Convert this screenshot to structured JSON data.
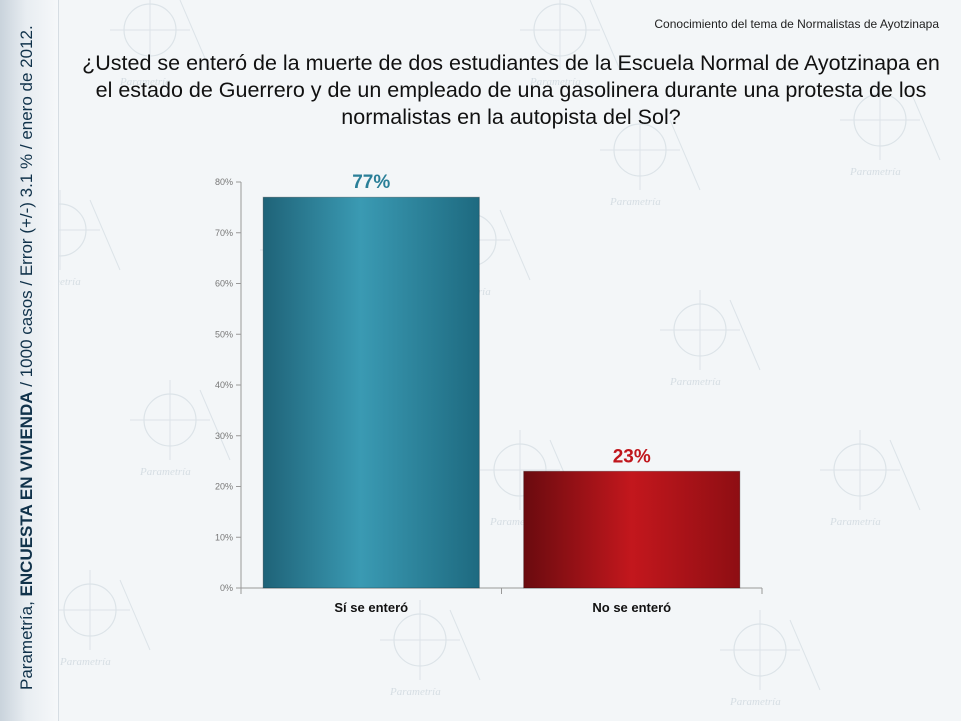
{
  "header_note": "Conocimiento del tema de Normalistas de Ayotzinapa",
  "question": "¿Usted se enteró de la muerte de dos estudiantes de la Escuela Normal de Ayotzinapa en el estado de Guerrero y de un empleado de una gasolinera durante una protesta de los normalistas en la autopista del Sol?",
  "side_note": {
    "part1": "Parametría, ",
    "part2": "ENCUESTA EN VIVIENDA",
    "part3": " / 1000 casos / Error (+/-) 3.1 % / enero de 2012."
  },
  "watermark": "Parametría",
  "chart_data": {
    "type": "bar",
    "categories": [
      "Sí se enteró",
      "No se enteró"
    ],
    "values": [
      77,
      23
    ],
    "data_labels": [
      "77%",
      "23%"
    ],
    "ylim": [
      0,
      80
    ],
    "yticks": [
      0,
      10,
      20,
      30,
      40,
      50,
      60,
      70,
      80
    ],
    "ytick_labels": [
      "0%",
      "10%",
      "20%",
      "30%",
      "40%",
      "50%",
      "60%",
      "70%",
      "80%"
    ],
    "colors": [
      "#2f8fa8",
      "#b0141a"
    ],
    "label_colors": [
      "#2a7f98",
      "#c0161c"
    ],
    "grid": false,
    "legend": "none"
  }
}
